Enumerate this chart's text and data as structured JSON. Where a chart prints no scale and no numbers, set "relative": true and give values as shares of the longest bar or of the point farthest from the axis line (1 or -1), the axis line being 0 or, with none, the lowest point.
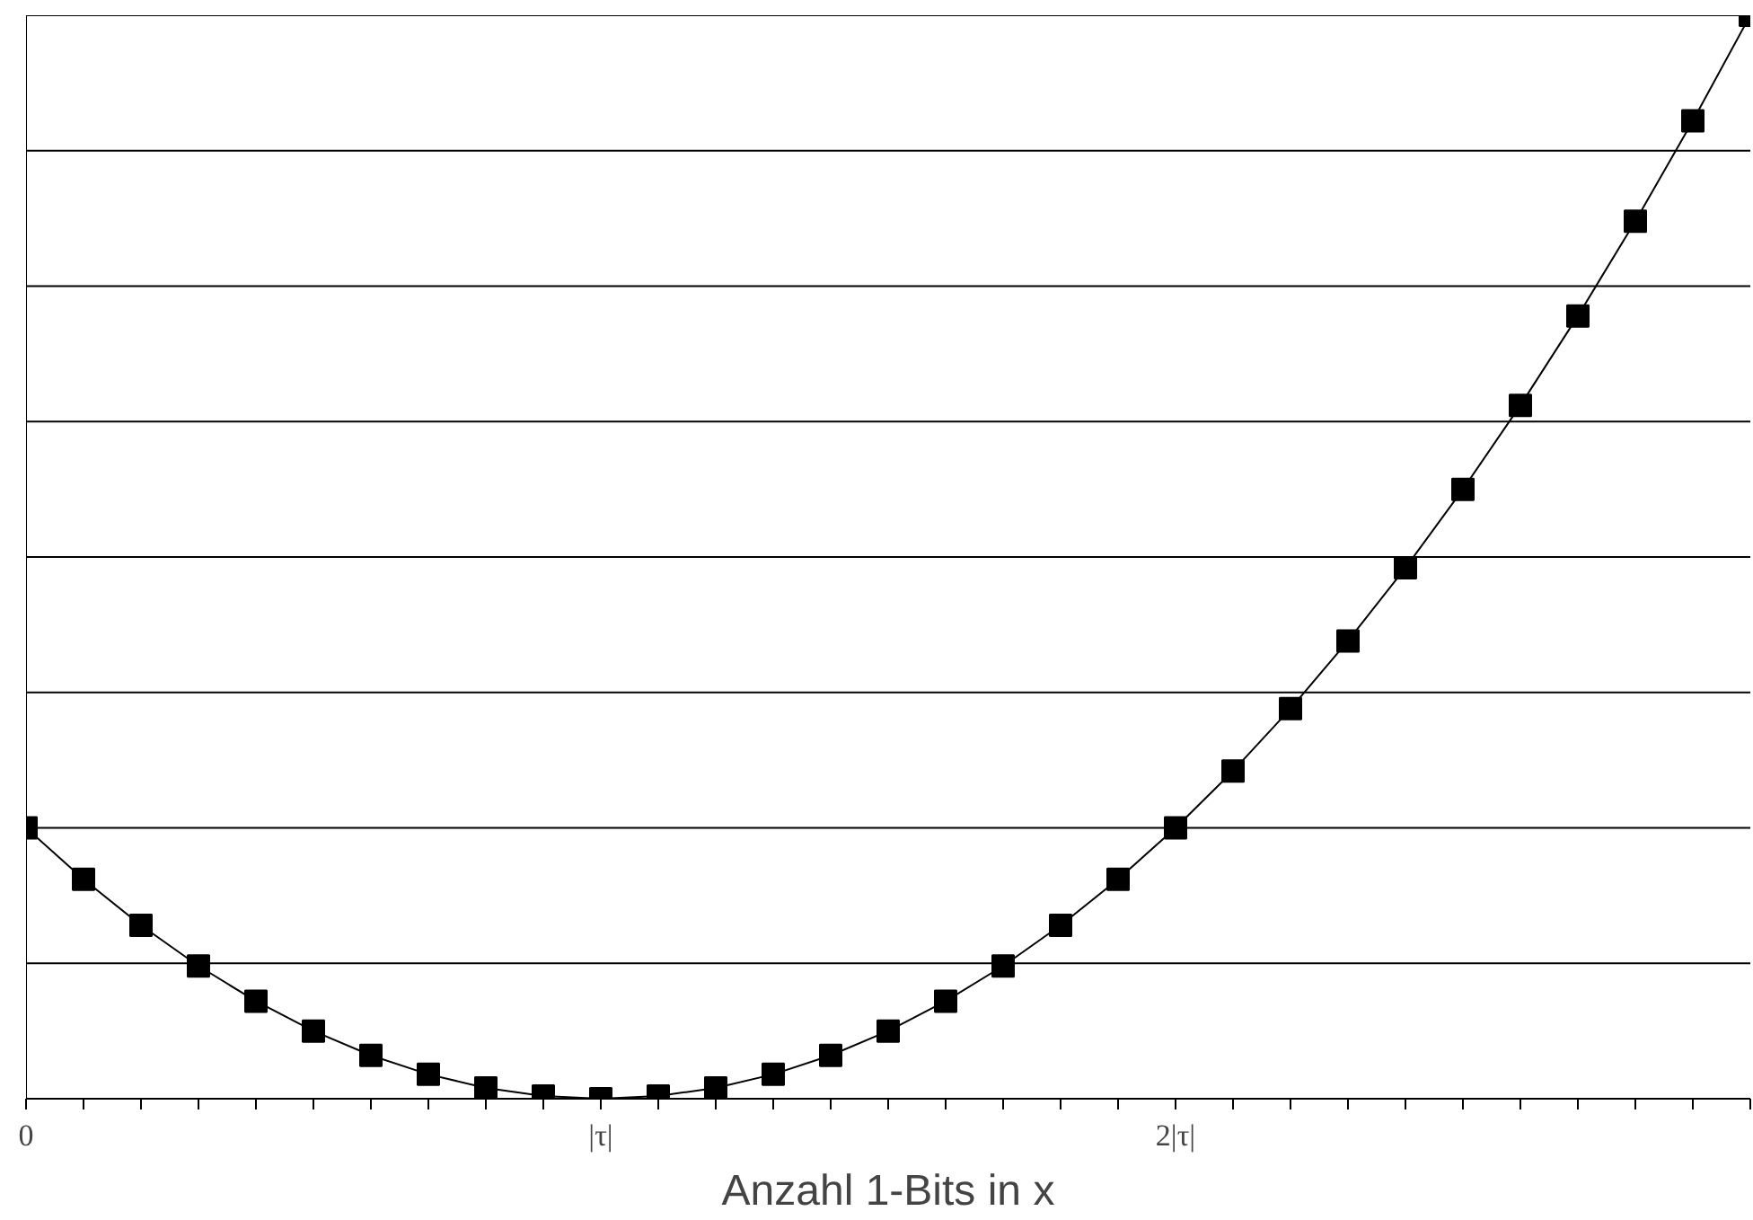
{
  "chart_data": {
    "type": "line",
    "xlabel": "Anzahl 1-Bits in x",
    "relative": true,
    "grid": "y",
    "marker": "square",
    "line_style": "solid",
    "categories": [
      "0",
      null,
      null,
      null,
      null,
      null,
      null,
      null,
      null,
      null,
      "|τ|",
      null,
      null,
      null,
      null,
      null,
      null,
      null,
      null,
      null,
      "2|τ|",
      null,
      null,
      null,
      null,
      null,
      null,
      null,
      null,
      null,
      null
    ],
    "series": [
      {
        "color": "#000000",
        "values": [
          0.25,
          0.2025,
          0.16,
          0.1225,
          0.09,
          0.0625,
          0.04,
          0.0225,
          0.01,
          0.0025,
          0,
          0.0025,
          0.01,
          0.0225,
          0.04,
          0.0625,
          0.09,
          0.1225,
          0.16,
          0.2025,
          0.25,
          0.3025,
          0.36,
          0.4225,
          0.49,
          0.5625,
          0.64,
          0.7225,
          0.81,
          0.9025,
          1
        ]
      }
    ]
  }
}
